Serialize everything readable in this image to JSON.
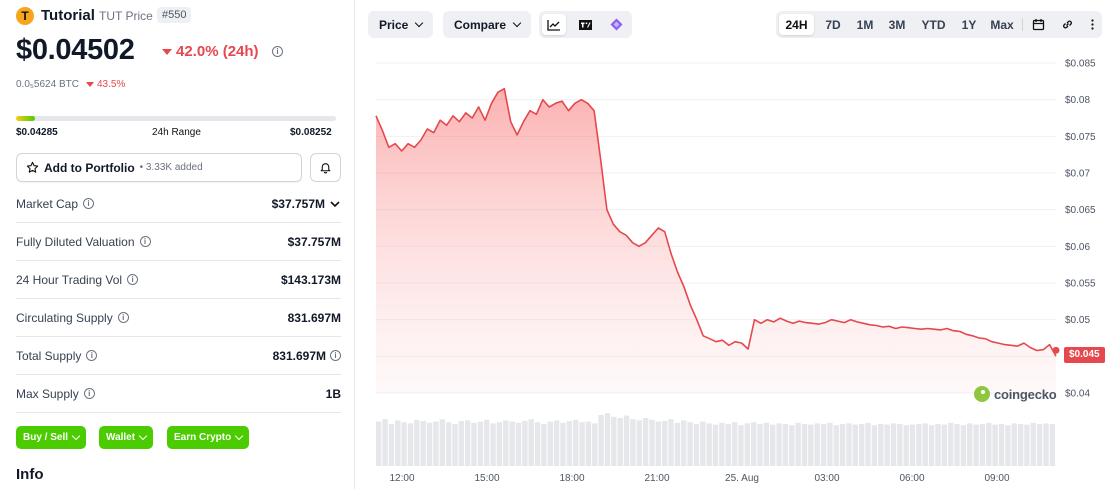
{
  "token": {
    "name": "Tutorial",
    "symbol_label": "TUT Price",
    "rank": "#550",
    "price": "$0.04502",
    "change_24h": "42.0% (24h)",
    "btc_price": "0.0₅5624 BTC",
    "btc_change": "43.5%",
    "colors": {
      "brand": "#f7a51c",
      "negative": "#e5484d",
      "accent": "#4bcc00"
    }
  },
  "range": {
    "low": "$0.04285",
    "label": "24h Range",
    "high": "$0.08252",
    "position": 0.06
  },
  "portfolio": {
    "label": "Add to Portfolio",
    "count": "• 3.33K added"
  },
  "stats": [
    {
      "label": "Market Cap",
      "value": "$37.757M"
    },
    {
      "label": "Fully Diluted Valuation",
      "value": "$37.757M"
    },
    {
      "label": "24 Hour Trading Vol",
      "value": "$143.173M"
    },
    {
      "label": "Circulating Supply",
      "value": "831.697M"
    },
    {
      "label": "Total Supply",
      "value": "831.697M"
    },
    {
      "label": "Max Supply",
      "value": "1B"
    }
  ],
  "actions": {
    "buy_sell": "Buy / Sell",
    "wallet": "Wallet",
    "earn": "Earn Crypto"
  },
  "info_heading": "Info",
  "toolbar": {
    "price_label": "Price",
    "compare_label": "Compare",
    "chart_types": [
      "line-chart-icon",
      "tradingview-icon",
      "candle-icon"
    ],
    "ranges": [
      "24H",
      "7D",
      "1M",
      "3M",
      "YTD",
      "1Y",
      "Max"
    ],
    "active_range": "24H",
    "tool_icons": [
      "calendar-icon",
      "link-icon",
      "more-icon"
    ]
  },
  "watermark": "coingecko",
  "chart_data": {
    "type": "line",
    "x_ticks": [
      "12:00",
      "15:00",
      "18:00",
      "21:00",
      "25. Aug",
      "03:00",
      "06:00",
      "09:00"
    ],
    "y_ticks": [
      "$0.085",
      "$0.08",
      "$0.075",
      "$0.07",
      "$0.065",
      "$0.06",
      "$0.055",
      "$0.05",
      "$0.045",
      "$0.04"
    ],
    "ylim": [
      0.04,
      0.085
    ],
    "grid": true,
    "current_price_label": "$0.045",
    "series": [
      {
        "values": [
          0.0778,
          0.0758,
          0.0735,
          0.074,
          0.073,
          0.074,
          0.0735,
          0.0745,
          0.076,
          0.0755,
          0.0772,
          0.0765,
          0.0778,
          0.077,
          0.0782,
          0.0775,
          0.079,
          0.0772,
          0.0795,
          0.081,
          0.0815,
          0.077,
          0.0752,
          0.077,
          0.0785,
          0.078,
          0.08,
          0.079,
          0.0795,
          0.0798,
          0.0785,
          0.0795,
          0.08,
          0.0795,
          0.0785,
          0.072,
          0.065,
          0.063,
          0.062,
          0.0615,
          0.0605,
          0.06,
          0.0605,
          0.0615,
          0.0625,
          0.062,
          0.059,
          0.0565,
          0.0545,
          0.052,
          0.05,
          0.0478,
          0.0474,
          0.047,
          0.0472,
          0.0465,
          0.047,
          0.0468,
          0.046,
          0.05,
          0.0495,
          0.05,
          0.0497,
          0.0502,
          0.0498,
          0.0495,
          0.0498,
          0.0496,
          0.0495,
          0.0494,
          0.0496,
          0.05,
          0.0498,
          0.0496,
          0.05,
          0.0497,
          0.0495,
          0.0493,
          0.0492,
          0.049,
          0.0491,
          0.0488,
          0.049,
          0.0489,
          0.0488,
          0.0487,
          0.0488,
          0.0487,
          0.0486,
          0.0488,
          0.0485,
          0.0484,
          0.048,
          0.0478,
          0.0475,
          0.0474,
          0.047,
          0.0468,
          0.0466,
          0.0465,
          0.0464,
          0.0468,
          0.0462,
          0.0458,
          0.0459,
          0.0466,
          0.045
        ]
      }
    ],
    "volume": [
      0.74,
      0.78,
      0.7,
      0.76,
      0.73,
      0.71,
      0.77,
      0.75,
      0.72,
      0.74,
      0.78,
      0.73,
      0.7,
      0.75,
      0.76,
      0.72,
      0.74,
      0.77,
      0.71,
      0.73,
      0.76,
      0.74,
      0.72,
      0.75,
      0.78,
      0.73,
      0.7,
      0.74,
      0.76,
      0.72,
      0.75,
      0.77,
      0.73,
      0.74,
      0.71,
      0.85,
      0.88,
      0.82,
      0.8,
      0.84,
      0.78,
      0.76,
      0.8,
      0.77,
      0.74,
      0.75,
      0.78,
      0.72,
      0.76,
      0.73,
      0.7,
      0.74,
      0.71,
      0.69,
      0.72,
      0.7,
      0.73,
      0.68,
      0.71,
      0.73,
      0.7,
      0.72,
      0.69,
      0.71,
      0.7,
      0.68,
      0.72,
      0.7,
      0.69,
      0.71,
      0.7,
      0.72,
      0.68,
      0.7,
      0.71,
      0.69,
      0.7,
      0.72,
      0.68,
      0.7,
      0.69,
      0.71,
      0.7,
      0.68,
      0.69,
      0.7,
      0.71,
      0.68,
      0.7,
      0.69,
      0.72,
      0.7,
      0.68,
      0.71,
      0.69,
      0.7,
      0.72,
      0.69,
      0.7,
      0.68,
      0.71,
      0.7,
      0.69,
      0.72,
      0.7,
      0.71,
      0.7
    ]
  }
}
